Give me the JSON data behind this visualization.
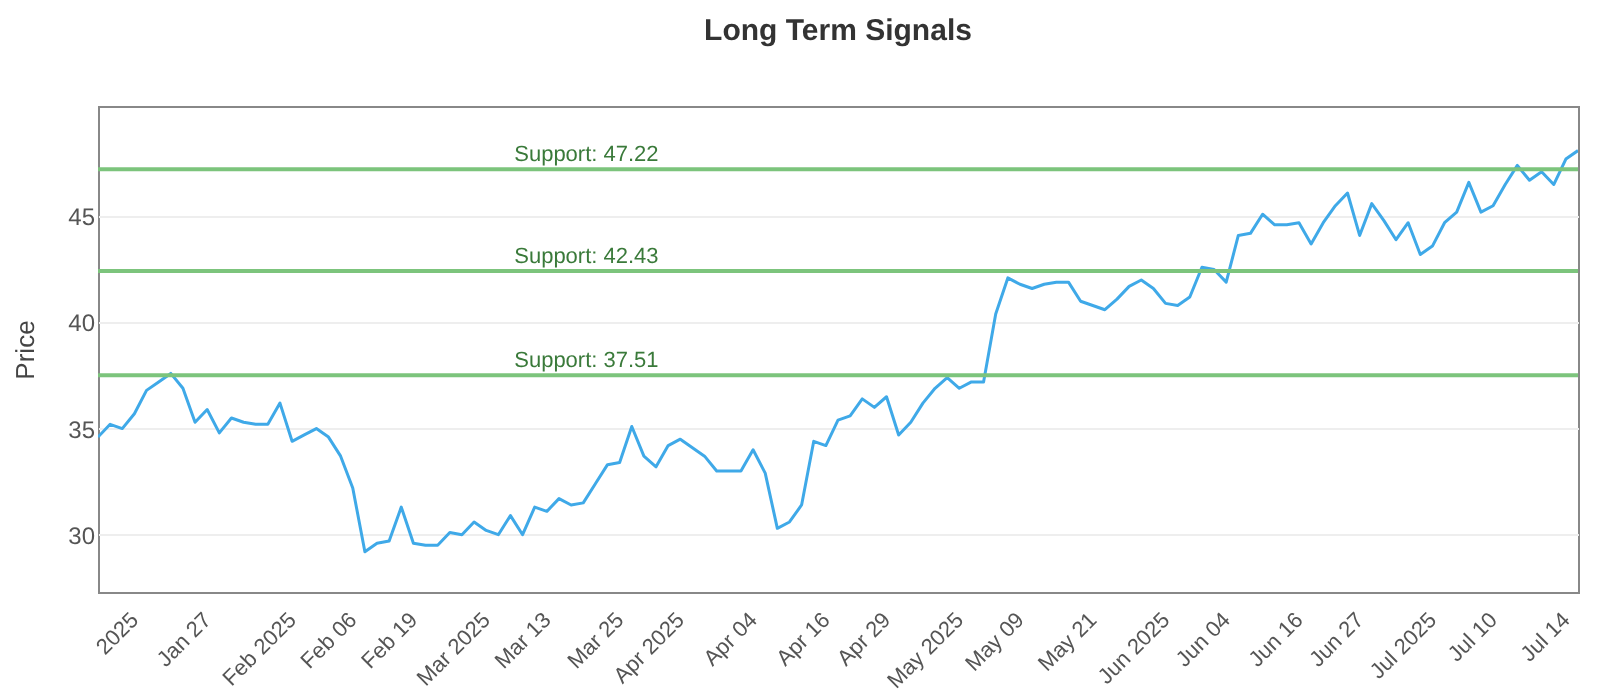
{
  "chart_data": {
    "type": "line",
    "title": "Long Term Signals",
    "ylabel": "Price",
    "categories": [
      null,
      null,
      null,
      "2025",
      null,
      null,
      null,
      null,
      null,
      "Jan 27",
      null,
      null,
      null,
      null,
      null,
      null,
      "Feb 2025",
      null,
      null,
      null,
      null,
      "Feb 06",
      null,
      null,
      null,
      null,
      "Feb 19",
      null,
      null,
      null,
      null,
      null,
      "Mar 2025",
      null,
      null,
      null,
      null,
      "Mar 13",
      null,
      null,
      null,
      null,
      null,
      "Mar 25",
      null,
      null,
      null,
      null,
      "Apr 2025",
      null,
      null,
      null,
      null,
      null,
      "Apr 04",
      null,
      null,
      null,
      null,
      null,
      "Apr 16",
      null,
      null,
      null,
      null,
      "Apr 29",
      null,
      null,
      null,
      null,
      null,
      "May 2025",
      null,
      null,
      null,
      null,
      "May 09",
      null,
      null,
      null,
      null,
      null,
      "May 21",
      null,
      null,
      null,
      null,
      null,
      "Jun 2025",
      null,
      null,
      null,
      null,
      "Jun 04",
      null,
      null,
      null,
      null,
      null,
      "Jun 16",
      null,
      null,
      null,
      null,
      "Jun 27",
      null,
      null,
      null,
      null,
      null,
      "Jul 2025",
      null,
      null,
      null,
      null,
      "Jul 10",
      null,
      null,
      null,
      null,
      null,
      "Jul 14",
      null
    ],
    "series": [
      {
        "color": "#3fa9e8",
        "values": [
          34.6,
          35.2,
          35.0,
          35.7,
          36.8,
          37.2,
          37.6,
          36.9,
          35.3,
          35.9,
          34.8,
          35.5,
          35.3,
          35.2,
          35.2,
          36.2,
          34.4,
          34.7,
          35.0,
          34.6,
          33.7,
          32.2,
          29.2,
          29.6,
          29.7,
          31.3,
          29.6,
          29.5,
          29.5,
          30.1,
          30.0,
          30.6,
          30.2,
          30.0,
          30.9,
          30.0,
          31.3,
          31.1,
          31.7,
          31.4,
          31.5,
          32.4,
          33.3,
          33.4,
          35.1,
          33.7,
          33.2,
          34.2,
          34.5,
          34.1,
          33.7,
          33.0,
          33.0,
          33.0,
          34.0,
          32.9,
          30.3,
          30.6,
          31.4,
          34.4,
          34.2,
          35.4,
          35.6,
          36.4,
          36.0,
          36.5,
          34.7,
          35.3,
          36.2,
          36.9,
          37.4,
          36.9,
          37.2,
          37.2,
          40.4,
          42.1,
          41.8,
          41.6,
          41.8,
          41.9,
          41.9,
          41.0,
          40.8,
          40.6,
          41.1,
          41.7,
          42.0,
          41.6,
          40.9,
          40.8,
          41.2,
          42.6,
          42.5,
          41.9,
          44.1,
          44.2,
          45.1,
          44.6,
          44.6,
          44.7,
          43.7,
          44.7,
          45.5,
          46.1,
          44.1,
          45.6,
          44.8,
          43.9,
          44.7,
          43.2,
          43.6,
          44.7,
          45.2,
          46.6,
          45.2,
          45.5,
          46.5,
          47.4,
          46.7,
          47.1,
          46.5,
          47.7,
          48.1
        ]
      }
    ],
    "ylim": [
      27.3,
      50.2
    ],
    "yticks": [
      30,
      35,
      40,
      45
    ],
    "grid": "y",
    "ref_lines": [
      {
        "axis": "y",
        "value": 47.22,
        "label": "Support: 47.22",
        "color": "#7cc47c"
      },
      {
        "axis": "y",
        "value": 42.43,
        "label": "Support: 42.43",
        "color": "#7cc47c"
      },
      {
        "axis": "y",
        "value": 37.51,
        "label": "Support: 37.51",
        "color": "#7cc47c"
      }
    ]
  }
}
